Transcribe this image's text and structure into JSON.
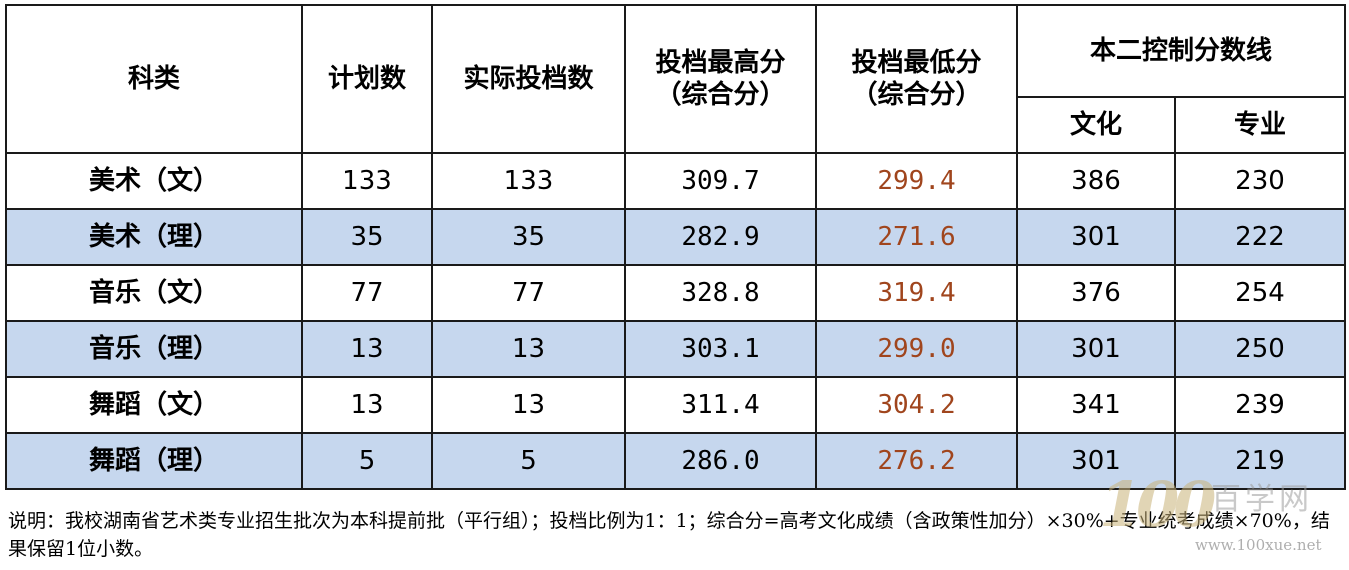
{
  "table": {
    "headers": {
      "category": "科类",
      "plan": "计划数",
      "actual": "实际投档数",
      "max_line1": "投档最高分",
      "max_line2": "（综合分）",
      "min_line1": "投档最低分",
      "min_line2": "（综合分）",
      "control": "本二控制分数线",
      "culture": "文化",
      "major": "专业"
    },
    "rows": [
      {
        "category": "美术（文）",
        "plan": "133",
        "actual": "133",
        "max": "309.7",
        "min": "299.4",
        "culture": "386",
        "major": "230"
      },
      {
        "category": "美术（理）",
        "plan": "35",
        "actual": "35",
        "max": "282.9",
        "min": "271.6",
        "culture": "301",
        "major": "222"
      },
      {
        "category": "音乐（文）",
        "plan": "77",
        "actual": "77",
        "max": "328.8",
        "min": "319.4",
        "culture": "376",
        "major": "254"
      },
      {
        "category": "音乐（理）",
        "plan": "13",
        "actual": "13",
        "max": "303.1",
        "min": "299.0",
        "culture": "301",
        "major": "250"
      },
      {
        "category": "舞蹈（文）",
        "plan": "13",
        "actual": "13",
        "max": "311.4",
        "min": "304.2",
        "culture": "341",
        "major": "239"
      },
      {
        "category": "舞蹈（理）",
        "plan": "5",
        "actual": "5",
        "max": "286.0",
        "min": "276.2",
        "culture": "301",
        "major": "219"
      }
    ]
  },
  "note": "说明：我校湖南省艺术类专业招生批次为本科提前批（平行组）；投档比例为1：1；综合分=高考文化成绩（含政策性加分）×30%+专业统考成绩×70%，结果保留1位小数。",
  "watermark": {
    "number": "100",
    "text": "百学网",
    "url": "www.100xue.net"
  },
  "colors": {
    "row_alt_background": "#c6d7ee",
    "min_score_text": "#a0451d"
  }
}
